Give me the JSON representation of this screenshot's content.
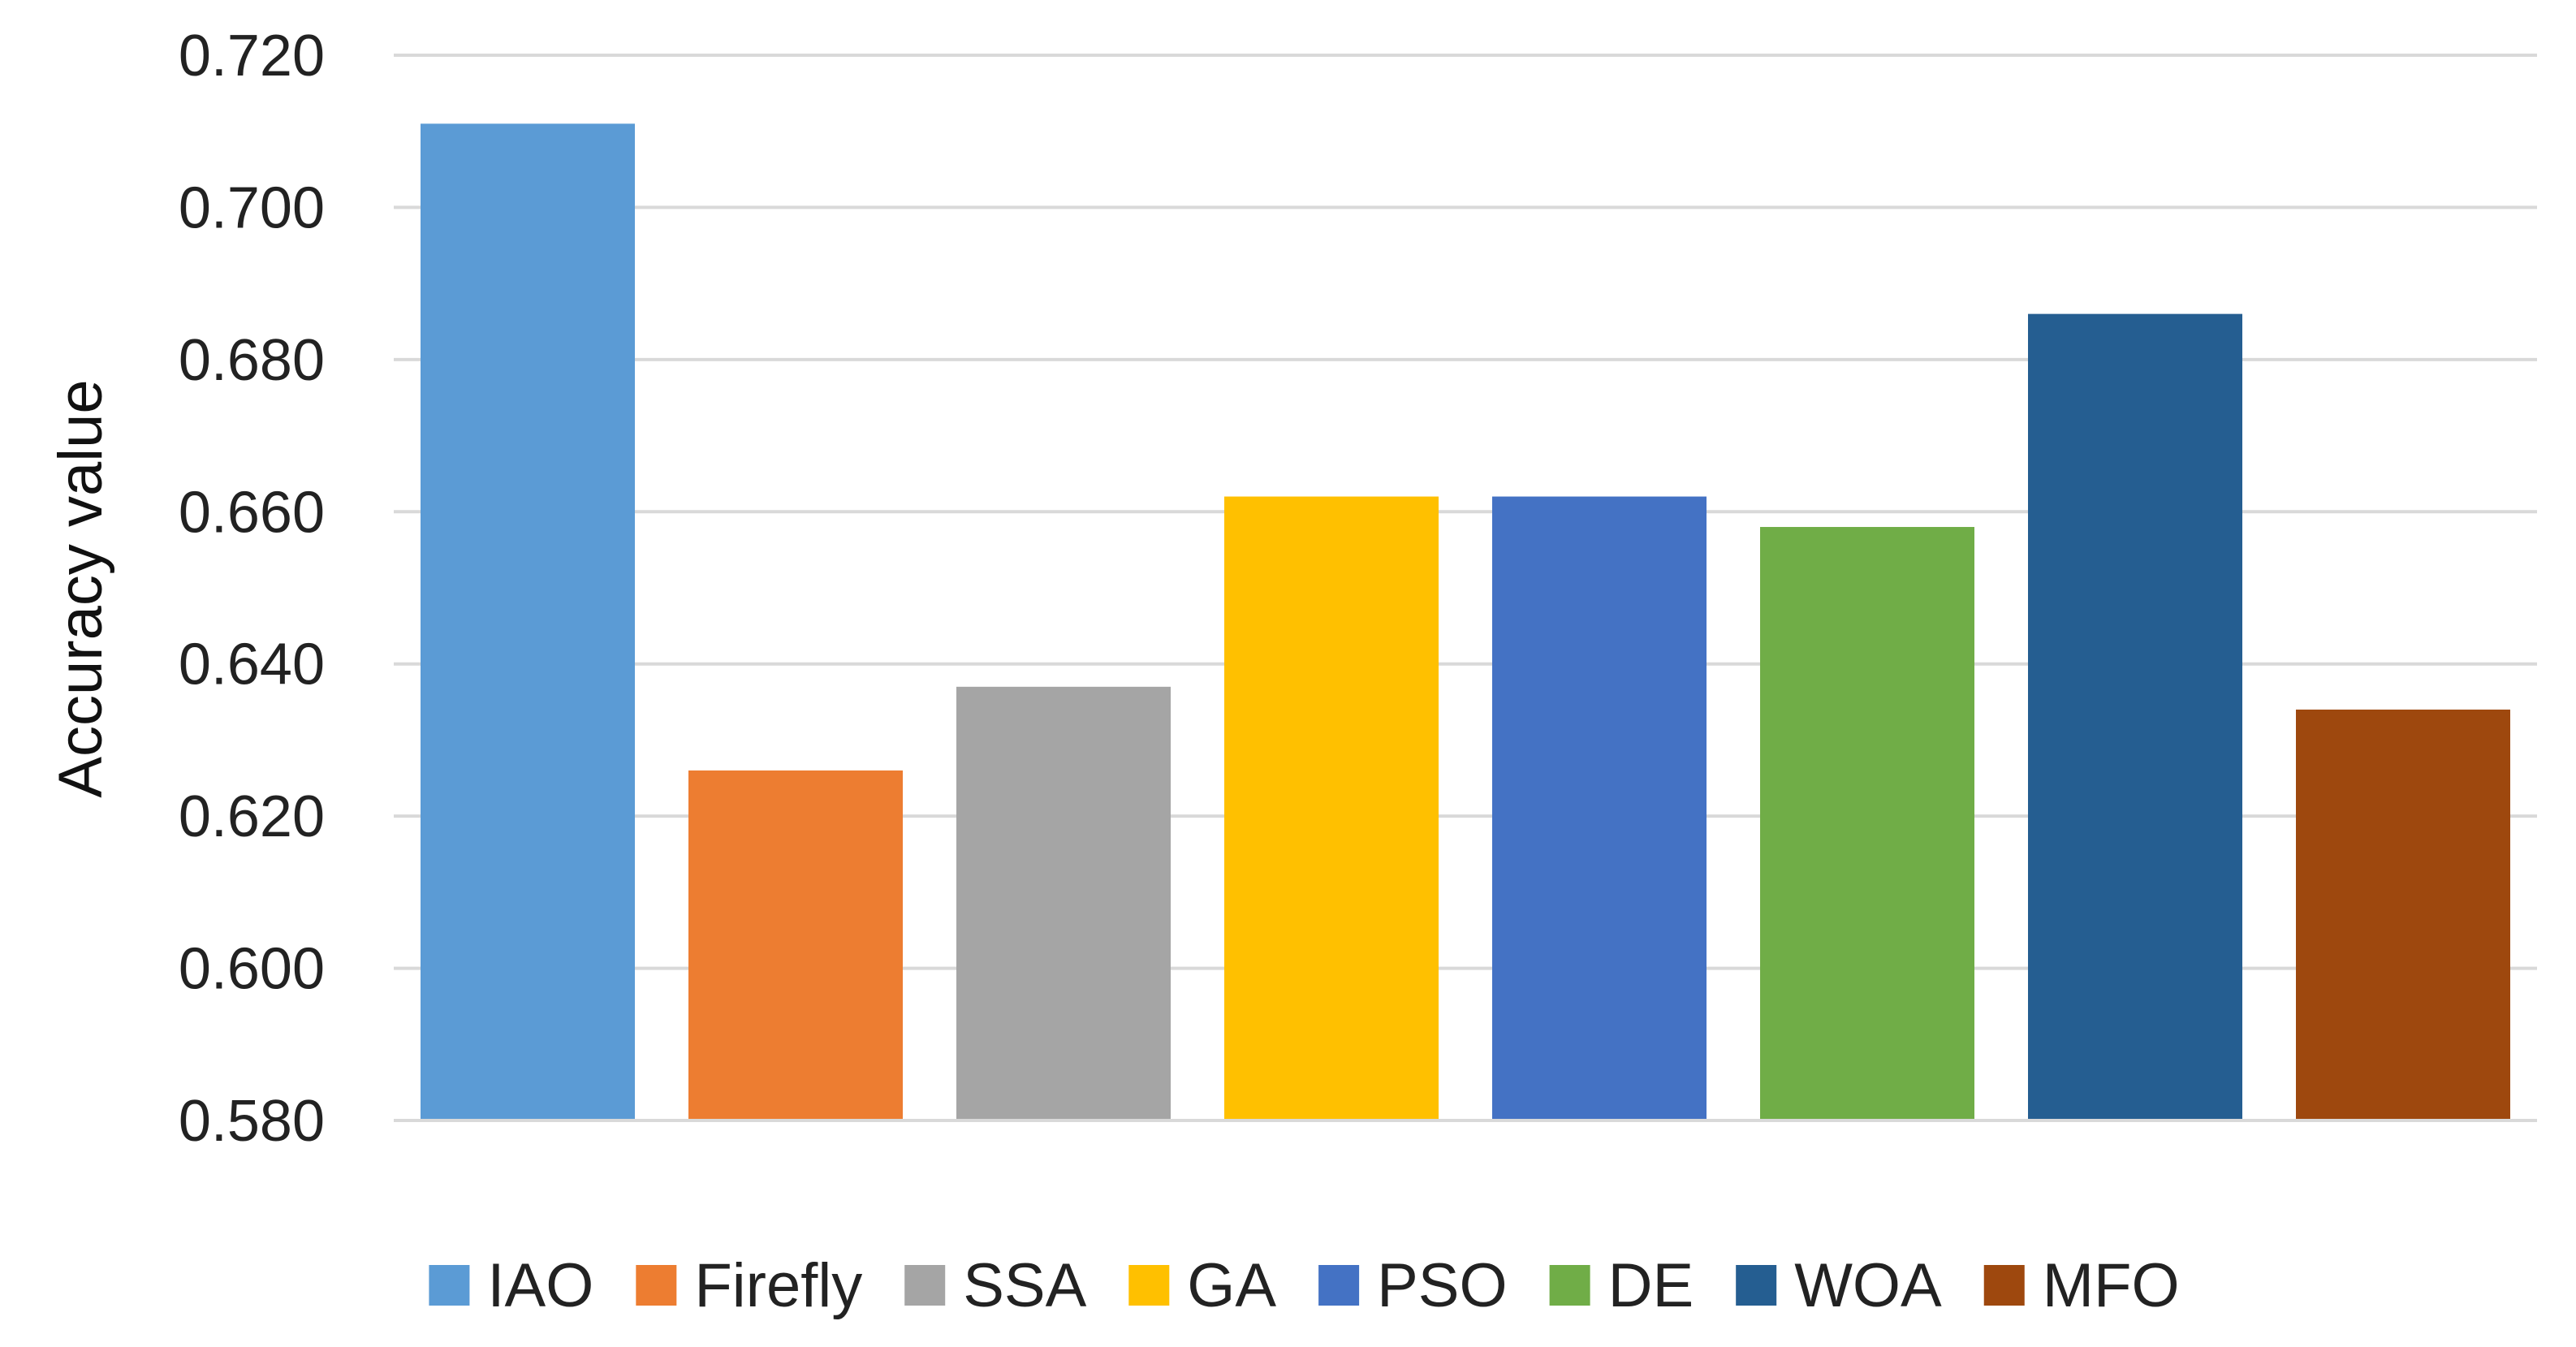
{
  "chart_data": {
    "type": "bar",
    "title": "",
    "xlabel": "",
    "ylabel": "Accuracy value",
    "ylim": [
      0.58,
      0.72
    ],
    "yticks": [
      "0.580",
      "0.600",
      "0.620",
      "0.640",
      "0.660",
      "0.680",
      "0.700",
      "0.720"
    ],
    "ytick_values": [
      0.58,
      0.6,
      0.62,
      0.64,
      0.66,
      0.68,
      0.7,
      0.72
    ],
    "grid": true,
    "legend_position": "bottom",
    "categories": [
      "IAO",
      "Firefly",
      "SSA",
      "GA",
      "PSO",
      "DE",
      "WOA",
      "MFO"
    ],
    "values": [
      0.711,
      0.626,
      0.637,
      0.662,
      0.662,
      0.658,
      0.686,
      0.634
    ],
    "colors": [
      "#5B9BD5",
      "#ED7D31",
      "#A5A5A5",
      "#FFC000",
      "#4472C4",
      "#70AD47",
      "#255E91",
      "#9E480E"
    ]
  }
}
